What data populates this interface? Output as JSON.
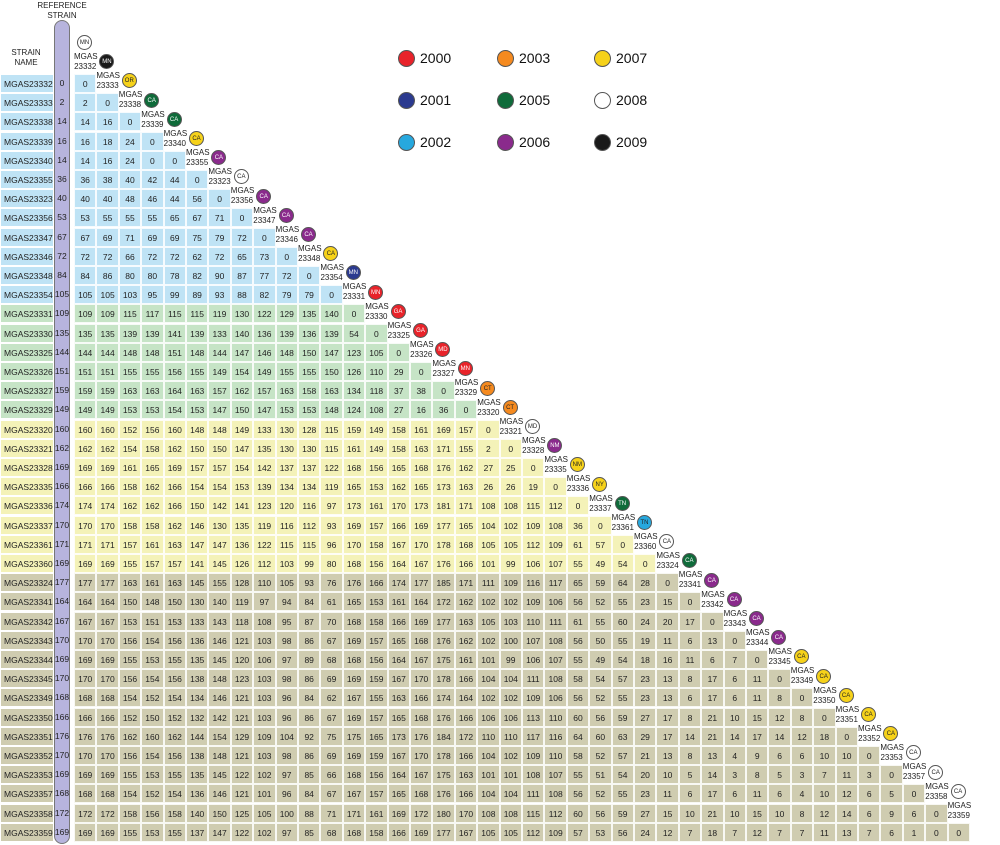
{
  "header": {
    "reference_strain": "REFERENCE STRAIN",
    "strain_name": "STRAIN NAME"
  },
  "legend": [
    {
      "year": "2000",
      "color": "#e8232a"
    },
    {
      "year": "2001",
      "color": "#2b3a8f"
    },
    {
      "year": "2002",
      "color": "#27a8de"
    },
    {
      "year": "2003",
      "color": "#f58a1f"
    },
    {
      "year": "2005",
      "color": "#0f6b3a"
    },
    {
      "year": "2006",
      "color": "#8a2a8c"
    },
    {
      "year": "2007",
      "color": "#f6d21a"
    },
    {
      "year": "2008",
      "color": "#ffffff"
    },
    {
      "year": "2009",
      "color": "#1a1a1a"
    }
  ],
  "strains": [
    {
      "name": "MGAS23332",
      "ref": "0",
      "state": "MN",
      "color": "#ffffff",
      "text": "#222"
    },
    {
      "name": "MGAS23333",
      "ref": "2",
      "state": "MN",
      "color": "#1a1a1a",
      "text": "#fff"
    },
    {
      "name": "MGAS23338",
      "ref": "14",
      "state": "OR",
      "color": "#f6d21a",
      "text": "#222"
    },
    {
      "name": "MGAS23339",
      "ref": "16",
      "state": "CA",
      "color": "#0f6b3a",
      "text": "#fff"
    },
    {
      "name": "MGAS23340",
      "ref": "14",
      "state": "CA",
      "color": "#0f6b3a",
      "text": "#fff"
    },
    {
      "name": "MGAS23355",
      "ref": "36",
      "state": "CA",
      "color": "#f6d21a",
      "text": "#222"
    },
    {
      "name": "MGAS23323",
      "ref": "40",
      "state": "CA",
      "color": "#8a2a8c",
      "text": "#fff"
    },
    {
      "name": "MGAS23356",
      "ref": "53",
      "state": "CA",
      "color": "#ffffff",
      "text": "#222"
    },
    {
      "name": "MGAS23347",
      "ref": "67",
      "state": "CA",
      "color": "#8a2a8c",
      "text": "#fff"
    },
    {
      "name": "MGAS23346",
      "ref": "72",
      "state": "CA",
      "color": "#8a2a8c",
      "text": "#fff"
    },
    {
      "name": "MGAS23348",
      "ref": "84",
      "state": "CA",
      "color": "#8a2a8c",
      "text": "#fff"
    },
    {
      "name": "MGAS23354",
      "ref": "105",
      "state": "CA",
      "color": "#f6d21a",
      "text": "#222"
    },
    {
      "name": "MGAS23331",
      "ref": "109",
      "state": "MN",
      "color": "#2b3a8f",
      "text": "#fff"
    },
    {
      "name": "MGAS23330",
      "ref": "135",
      "state": "MN",
      "color": "#e8232a",
      "text": "#fff"
    },
    {
      "name": "MGAS23325",
      "ref": "144",
      "state": "GA",
      "color": "#e8232a",
      "text": "#fff"
    },
    {
      "name": "MGAS23326",
      "ref": "151",
      "state": "GA",
      "color": "#e8232a",
      "text": "#fff"
    },
    {
      "name": "MGAS23327",
      "ref": "159",
      "state": "MD",
      "color": "#e8232a",
      "text": "#fff"
    },
    {
      "name": "MGAS23329",
      "ref": "149",
      "state": "MN",
      "color": "#e8232a",
      "text": "#fff"
    },
    {
      "name": "MGAS23320",
      "ref": "160",
      "state": "CT",
      "color": "#f58a1f",
      "text": "#222"
    },
    {
      "name": "MGAS23321",
      "ref": "162",
      "state": "CT",
      "color": "#f58a1f",
      "text": "#222"
    },
    {
      "name": "MGAS23328",
      "ref": "169",
      "state": "MD",
      "color": "#ffffff",
      "text": "#222"
    },
    {
      "name": "MGAS23335",
      "ref": "166",
      "state": "NM",
      "color": "#8a2a8c",
      "text": "#fff"
    },
    {
      "name": "MGAS23336",
      "ref": "174",
      "state": "NM",
      "color": "#f6d21a",
      "text": "#222"
    },
    {
      "name": "MGAS23337",
      "ref": "170",
      "state": "NY",
      "color": "#f6d21a",
      "text": "#222"
    },
    {
      "name": "MGAS23361",
      "ref": "171",
      "state": "TN",
      "color": "#0f6b3a",
      "text": "#fff"
    },
    {
      "name": "MGAS23360",
      "ref": "169",
      "state": "TN",
      "color": "#27a8de",
      "text": "#222"
    },
    {
      "name": "MGAS23324",
      "ref": "177",
      "state": "CA",
      "color": "#ffffff",
      "text": "#222"
    },
    {
      "name": "MGAS23341",
      "ref": "164",
      "state": "CA",
      "color": "#0f6b3a",
      "text": "#fff"
    },
    {
      "name": "MGAS23342",
      "ref": "167",
      "state": "CA",
      "color": "#8a2a8c",
      "text": "#fff"
    },
    {
      "name": "MGAS23343",
      "ref": "170",
      "state": "CA",
      "color": "#8a2a8c",
      "text": "#fff"
    },
    {
      "name": "MGAS23344",
      "ref": "169",
      "state": "CA",
      "color": "#8a2a8c",
      "text": "#fff"
    },
    {
      "name": "MGAS23345",
      "ref": "170",
      "state": "CA",
      "color": "#8a2a8c",
      "text": "#fff"
    },
    {
      "name": "MGAS23349",
      "ref": "168",
      "state": "CA",
      "color": "#f6d21a",
      "text": "#222"
    },
    {
      "name": "MGAS23350",
      "ref": "166",
      "state": "CA",
      "color": "#f6d21a",
      "text": "#222"
    },
    {
      "name": "MGAS23351",
      "ref": "176",
      "state": "CA",
      "color": "#f6d21a",
      "text": "#222"
    },
    {
      "name": "MGAS23352",
      "ref": "170",
      "state": "CA",
      "color": "#f6d21a",
      "text": "#222"
    },
    {
      "name": "MGAS23353",
      "ref": "169",
      "state": "CA",
      "color": "#f6d21a",
      "text": "#222"
    },
    {
      "name": "MGAS23357",
      "ref": "168",
      "state": "CA",
      "color": "#ffffff",
      "text": "#222"
    },
    {
      "name": "MGAS23358",
      "ref": "172",
      "state": "CA",
      "color": "#ffffff",
      "text": "#222"
    },
    {
      "name": "MGAS23359",
      "ref": "169",
      "state": "CA",
      "color": "#ffffff",
      "text": "#222"
    }
  ],
  "groups": [
    {
      "rows": 12,
      "color": "#bfe3f5"
    },
    {
      "rows": 6,
      "color": "#c6e4c6"
    },
    {
      "rows": 8,
      "color": "#f4f2b8"
    },
    {
      "rows": 14,
      "color": "#cfccb0"
    }
  ],
  "matrix": [
    [],
    [
      "2"
    ],
    [
      "14",
      "16"
    ],
    [
      "16",
      "18",
      "24"
    ],
    [
      "14",
      "16",
      "24",
      "0"
    ],
    [
      "36",
      "38",
      "40",
      "42",
      "44"
    ],
    [
      "40",
      "40",
      "48",
      "46",
      "44",
      "56"
    ],
    [
      "53",
      "55",
      "55",
      "55",
      "65",
      "67",
      "71"
    ],
    [
      "67",
      "69",
      "71",
      "69",
      "69",
      "75",
      "79",
      "72"
    ],
    [
      "72",
      "72",
      "66",
      "72",
      "72",
      "62",
      "72",
      "65",
      "73"
    ],
    [
      "84",
      "86",
      "80",
      "80",
      "78",
      "82",
      "90",
      "87",
      "77",
      "72"
    ],
    [
      "105",
      "105",
      "103",
      "95",
      "99",
      "89",
      "93",
      "88",
      "82",
      "79",
      "79"
    ],
    [
      "109",
      "109",
      "115",
      "117",
      "115",
      "115",
      "119",
      "130",
      "122",
      "129",
      "135",
      "140"
    ],
    [
      "135",
      "135",
      "139",
      "139",
      "141",
      "139",
      "133",
      "140",
      "136",
      "139",
      "136",
      "139",
      "54"
    ],
    [
      "144",
      "144",
      "148",
      "148",
      "151",
      "148",
      "144",
      "147",
      "146",
      "148",
      "150",
      "147",
      "123",
      "105"
    ],
    [
      "151",
      "151",
      "155",
      "155",
      "156",
      "155",
      "149",
      "154",
      "149",
      "155",
      "155",
      "150",
      "126",
      "110",
      "29"
    ],
    [
      "159",
      "159",
      "163",
      "163",
      "164",
      "163",
      "157",
      "162",
      "157",
      "163",
      "158",
      "163",
      "134",
      "118",
      "37",
      "38"
    ],
    [
      "149",
      "149",
      "153",
      "153",
      "154",
      "153",
      "147",
      "150",
      "147",
      "153",
      "153",
      "148",
      "124",
      "108",
      "27",
      "16",
      "36"
    ],
    [
      "160",
      "160",
      "152",
      "156",
      "160",
      "148",
      "148",
      "149",
      "133",
      "130",
      "128",
      "115",
      "159",
      "149",
      "158",
      "161",
      "169",
      "157"
    ],
    [
      "162",
      "162",
      "154",
      "158",
      "162",
      "150",
      "150",
      "147",
      "135",
      "130",
      "130",
      "115",
      "161",
      "149",
      "158",
      "163",
      "171",
      "155",
      "2"
    ],
    [
      "169",
      "169",
      "161",
      "165",
      "169",
      "157",
      "157",
      "154",
      "142",
      "137",
      "137",
      "122",
      "168",
      "156",
      "165",
      "168",
      "176",
      "162",
      "27",
      "25"
    ],
    [
      "166",
      "166",
      "158",
      "162",
      "166",
      "154",
      "154",
      "153",
      "139",
      "134",
      "134",
      "119",
      "165",
      "153",
      "162",
      "165",
      "173",
      "163",
      "26",
      "26",
      "19"
    ],
    [
      "174",
      "174",
      "162",
      "162",
      "166",
      "150",
      "142",
      "141",
      "123",
      "120",
      "116",
      "97",
      "173",
      "161",
      "170",
      "173",
      "181",
      "171",
      "108",
      "108",
      "115",
      "112"
    ],
    [
      "170",
      "170",
      "158",
      "158",
      "162",
      "146",
      "130",
      "135",
      "119",
      "116",
      "112",
      "93",
      "169",
      "157",
      "166",
      "169",
      "177",
      "165",
      "104",
      "102",
      "109",
      "108",
      "36"
    ],
    [
      "171",
      "171",
      "157",
      "161",
      "163",
      "147",
      "147",
      "136",
      "122",
      "115",
      "115",
      "96",
      "170",
      "158",
      "167",
      "170",
      "178",
      "168",
      "105",
      "105",
      "112",
      "109",
      "61",
      "57"
    ],
    [
      "169",
      "169",
      "155",
      "157",
      "157",
      "141",
      "145",
      "126",
      "112",
      "103",
      "99",
      "80",
      "168",
      "156",
      "164",
      "167",
      "176",
      "166",
      "101",
      "99",
      "106",
      "107",
      "55",
      "49",
      "54"
    ],
    [
      "177",
      "177",
      "163",
      "161",
      "163",
      "145",
      "155",
      "128",
      "110",
      "105",
      "93",
      "76",
      "176",
      "166",
      "174",
      "177",
      "185",
      "171",
      "111",
      "109",
      "116",
      "117",
      "65",
      "59",
      "64",
      "28"
    ],
    [
      "164",
      "164",
      "150",
      "148",
      "150",
      "130",
      "140",
      "119",
      "97",
      "94",
      "84",
      "61",
      "165",
      "153",
      "161",
      "164",
      "172",
      "162",
      "102",
      "102",
      "109",
      "106",
      "56",
      "52",
      "55",
      "23",
      "15"
    ],
    [
      "167",
      "167",
      "153",
      "151",
      "153",
      "133",
      "143",
      "118",
      "108",
      "95",
      "87",
      "70",
      "168",
      "158",
      "166",
      "169",
      "177",
      "163",
      "105",
      "103",
      "110",
      "111",
      "61",
      "55",
      "60",
      "24",
      "20",
      "17"
    ],
    [
      "170",
      "170",
      "156",
      "154",
      "156",
      "136",
      "146",
      "121",
      "103",
      "98",
      "86",
      "67",
      "169",
      "157",
      "165",
      "168",
      "176",
      "162",
      "102",
      "100",
      "107",
      "108",
      "56",
      "50",
      "55",
      "19",
      "11",
      "6",
      "13"
    ],
    [
      "169",
      "169",
      "155",
      "153",
      "155",
      "135",
      "145",
      "120",
      "106",
      "97",
      "89",
      "68",
      "168",
      "156",
      "164",
      "167",
      "175",
      "161",
      "101",
      "99",
      "106",
      "107",
      "55",
      "49",
      "54",
      "18",
      "16",
      "11",
      "6",
      "7"
    ],
    [
      "170",
      "170",
      "156",
      "154",
      "156",
      "138",
      "148",
      "123",
      "103",
      "98",
      "86",
      "69",
      "169",
      "159",
      "167",
      "170",
      "178",
      "166",
      "104",
      "104",
      "111",
      "108",
      "58",
      "54",
      "57",
      "23",
      "13",
      "8",
      "17",
      "6",
      "11"
    ],
    [
      "168",
      "168",
      "154",
      "152",
      "154",
      "134",
      "146",
      "121",
      "103",
      "96",
      "84",
      "62",
      "167",
      "155",
      "163",
      "166",
      "174",
      "164",
      "102",
      "102",
      "109",
      "106",
      "56",
      "52",
      "55",
      "23",
      "13",
      "6",
      "17",
      "6",
      "11",
      "8"
    ],
    [
      "166",
      "166",
      "152",
      "150",
      "152",
      "132",
      "142",
      "121",
      "103",
      "96",
      "86",
      "67",
      "169",
      "157",
      "165",
      "168",
      "176",
      "166",
      "106",
      "106",
      "113",
      "110",
      "60",
      "56",
      "59",
      "27",
      "17",
      "8",
      "21",
      "10",
      "15",
      "12",
      "8"
    ],
    [
      "176",
      "176",
      "162",
      "160",
      "162",
      "144",
      "154",
      "129",
      "109",
      "104",
      "92",
      "75",
      "175",
      "165",
      "173",
      "176",
      "184",
      "172",
      "110",
      "110",
      "117",
      "116",
      "64",
      "60",
      "63",
      "29",
      "17",
      "14",
      "21",
      "14",
      "17",
      "14",
      "12",
      "18"
    ],
    [
      "170",
      "170",
      "156",
      "154",
      "156",
      "138",
      "148",
      "121",
      "103",
      "98",
      "86",
      "69",
      "169",
      "159",
      "167",
      "170",
      "178",
      "166",
      "104",
      "102",
      "109",
      "110",
      "58",
      "52",
      "57",
      "21",
      "13",
      "8",
      "13",
      "4",
      "9",
      "6",
      "6",
      "10",
      "10"
    ],
    [
      "169",
      "169",
      "155",
      "153",
      "155",
      "135",
      "145",
      "122",
      "102",
      "97",
      "85",
      "66",
      "168",
      "156",
      "164",
      "167",
      "175",
      "163",
      "101",
      "101",
      "108",
      "107",
      "55",
      "51",
      "54",
      "20",
      "10",
      "5",
      "14",
      "3",
      "8",
      "5",
      "3",
      "7",
      "11",
      "3"
    ],
    [
      "168",
      "168",
      "154",
      "152",
      "154",
      "136",
      "146",
      "121",
      "101",
      "96",
      "84",
      "67",
      "167",
      "157",
      "165",
      "168",
      "176",
      "166",
      "104",
      "104",
      "111",
      "108",
      "56",
      "52",
      "55",
      "23",
      "11",
      "6",
      "17",
      "6",
      "11",
      "6",
      "4",
      "10",
      "12",
      "6",
      "5"
    ],
    [
      "172",
      "172",
      "158",
      "156",
      "158",
      "140",
      "150",
      "125",
      "105",
      "100",
      "88",
      "71",
      "171",
      "161",
      "169",
      "172",
      "180",
      "170",
      "108",
      "108",
      "115",
      "112",
      "60",
      "56",
      "59",
      "27",
      "15",
      "10",
      "21",
      "10",
      "15",
      "10",
      "8",
      "12",
      "14",
      "6",
      "9",
      "6"
    ],
    [
      "169",
      "169",
      "155",
      "153",
      "155",
      "137",
      "147",
      "122",
      "102",
      "97",
      "85",
      "68",
      "168",
      "158",
      "166",
      "169",
      "177",
      "167",
      "105",
      "105",
      "112",
      "109",
      "57",
      "53",
      "56",
      "24",
      "12",
      "7",
      "18",
      "7",
      "12",
      "7",
      "7",
      "11",
      "13",
      "7",
      "6",
      "1",
      "0"
    ]
  ]
}
